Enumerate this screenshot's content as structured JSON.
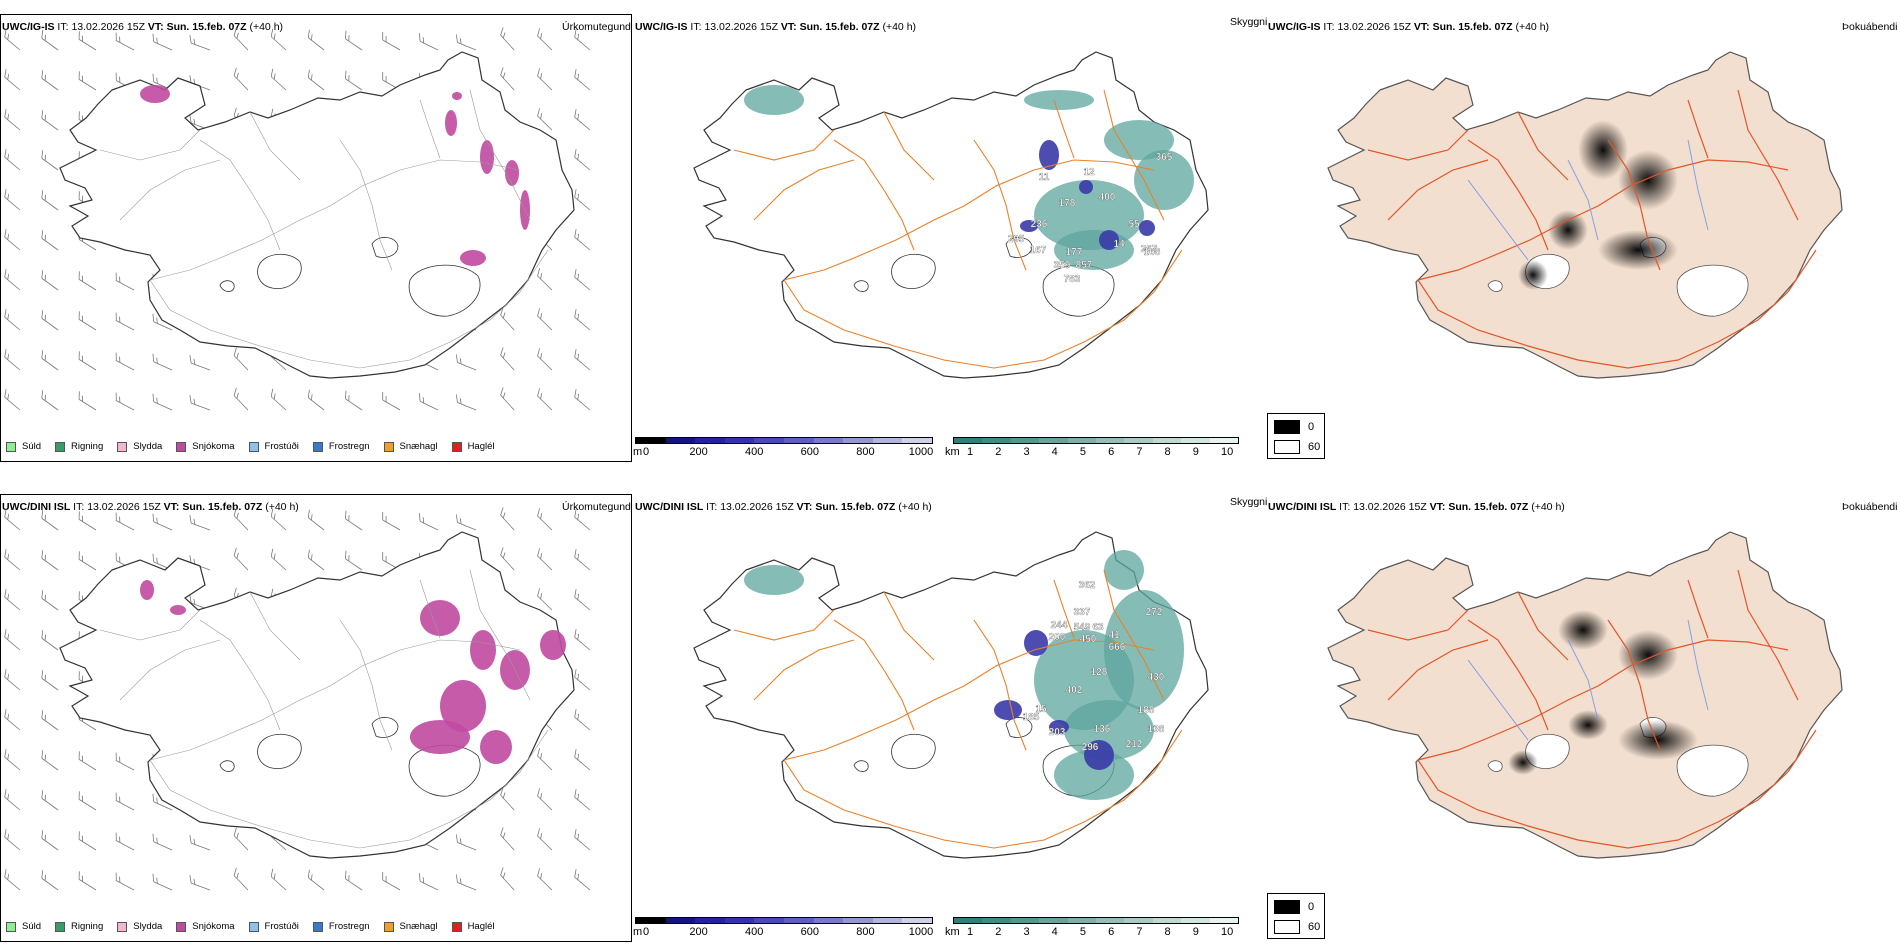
{
  "rows": [
    {
      "model": "UWC/IG-IS",
      "it_label": "IT:",
      "it_value": "13.02.2026 15Z",
      "vt_label": "VT:",
      "vt_value": "Sun. 15.feb. 07Z",
      "lead": "(+40 h)",
      "panels": {
        "precip": "Úrkomutegund",
        "ceiling": "Skyggni",
        "fog": "Þokuábendi"
      },
      "ceiling_labels": [
        "11",
        "12",
        "365",
        "400",
        "178",
        "236",
        "55",
        "295",
        "14",
        "167",
        "267",
        "177",
        "168",
        "359",
        "857",
        "783"
      ]
    },
    {
      "model": "UWC/DINI ISL",
      "it_label": "IT:",
      "it_value": "13.02.2026 15Z",
      "vt_label": "VT:",
      "vt_value": "Sun. 15.feb. 07Z",
      "lead": "(+40 h)",
      "panels": {
        "precip": "Úrkomutegund",
        "ceiling": "Skyggni",
        "fog": "Þokuábendi"
      },
      "ceiling_labels": [
        "362",
        "337",
        "272",
        "244",
        "200",
        "549",
        "63",
        "450",
        "41",
        "666",
        "128",
        "402",
        "430",
        "185",
        "15",
        "188",
        "203",
        "136",
        "138",
        "296",
        "212"
      ]
    }
  ],
  "precip_legend": [
    {
      "label": "Súld",
      "color": "#90ee90"
    },
    {
      "label": "Rigning",
      "color": "#3c9a6a"
    },
    {
      "label": "Slydda",
      "color": "#f4b6d2"
    },
    {
      "label": "Snjókoma",
      "color": "#c04aa0"
    },
    {
      "label": "Frostúði",
      "color": "#8ec0ee"
    },
    {
      "label": "Frostregn",
      "color": "#3a78c8"
    },
    {
      "label": "Snæhagl",
      "color": "#f0a020"
    },
    {
      "label": "Haglél",
      "color": "#e02020"
    }
  ],
  "ceiling_bar_m": {
    "unit": "m",
    "ticks": [
      "0",
      "200",
      "400",
      "600",
      "800",
      "1000"
    ],
    "colors": [
      "#000000",
      "#141480",
      "#24249a",
      "#3434a8",
      "#4a4ab4",
      "#6060bc",
      "#7a7ac8",
      "#9696d4",
      "#b4b4e0",
      "#d0d0ec"
    ]
  },
  "vis_bar_km": {
    "unit": "km",
    "ticks": [
      "1",
      "2",
      "3",
      "4",
      "5",
      "6",
      "7",
      "8",
      "9",
      "10"
    ],
    "colors": [
      "#2f7f7a",
      "#3f8c86",
      "#52988f",
      "#66a49c",
      "#7ab2a9",
      "#90bfb6",
      "#a6ccc4",
      "#bcd9d2",
      "#d2e6e0",
      "#e8f2ee"
    ]
  },
  "fog_legend": [
    {
      "label": "0",
      "color": "#000000"
    },
    {
      "label": "60",
      "color": "#ffffff"
    }
  ],
  "colors": {
    "coast": "#333333",
    "roads": "#e8822a",
    "land_fog": "#f3dfcf",
    "fog_roads": "#e2562a",
    "rivers": "#7a9ae8",
    "snow": "#c04aa0",
    "teal": "#5ea59e",
    "blue": "#3a3aa8"
  }
}
